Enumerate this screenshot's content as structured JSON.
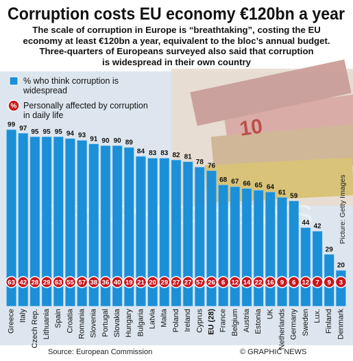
{
  "chart_data": {
    "type": "bar",
    "title": "Corruption costs EU economy €120bn a year",
    "subtitle": [
      "The scale of corruption in Europe is “breathtaking”, costing the EU",
      "economy at least €120bn a year, equivalent to the bloc’s annual budget.",
      "Three-quarters of Europeans surveyed also said that corruption",
      "is widespread in their own country"
    ],
    "categories": [
      "Greece",
      "Italy",
      "Czech Rep.",
      "Lithuania",
      "Spain",
      "Croatia",
      "Romania",
      "Slovenia",
      "Portugal",
      "Slovakia",
      "Hungary",
      "Bulgaria",
      "Latvia",
      "Malta",
      "Poland",
      "Ireland",
      "Cyprus",
      "EU (28)",
      "France",
      "Belgium",
      "Austria",
      "Estonia",
      "UK",
      "Netherlands",
      "Germany",
      "Sweden",
      "Lux.",
      "Finland",
      "Denmark"
    ],
    "highlight_index": 17,
    "series": [
      {
        "name": "% who think corruption is widespread",
        "color": "#1b8fd8",
        "values": [
          99,
          97,
          95,
          95,
          95,
          94,
          93,
          91,
          90,
          90,
          89,
          84,
          83,
          83,
          82,
          81,
          78,
          76,
          68,
          67,
          66,
          65,
          64,
          61,
          59,
          44,
          42,
          29,
          20
        ]
      },
      {
        "name": "Personally affected by corruption in daily life",
        "color": "#c8161d",
        "symbol": "%",
        "values": [
          63,
          42,
          28,
          29,
          63,
          55,
          57,
          38,
          36,
          40,
          19,
          21,
          20,
          29,
          27,
          27,
          57,
          26,
          6,
          12,
          14,
          22,
          16,
          9,
          6,
          12,
          7,
          9,
          3
        ]
      }
    ],
    "watermark": "GRAPHIC NEWS",
    "picture_credit": "Picture: Getty Images",
    "source": "Source: European Commission",
    "copyright": "© GRAPHIC NEWS"
  }
}
